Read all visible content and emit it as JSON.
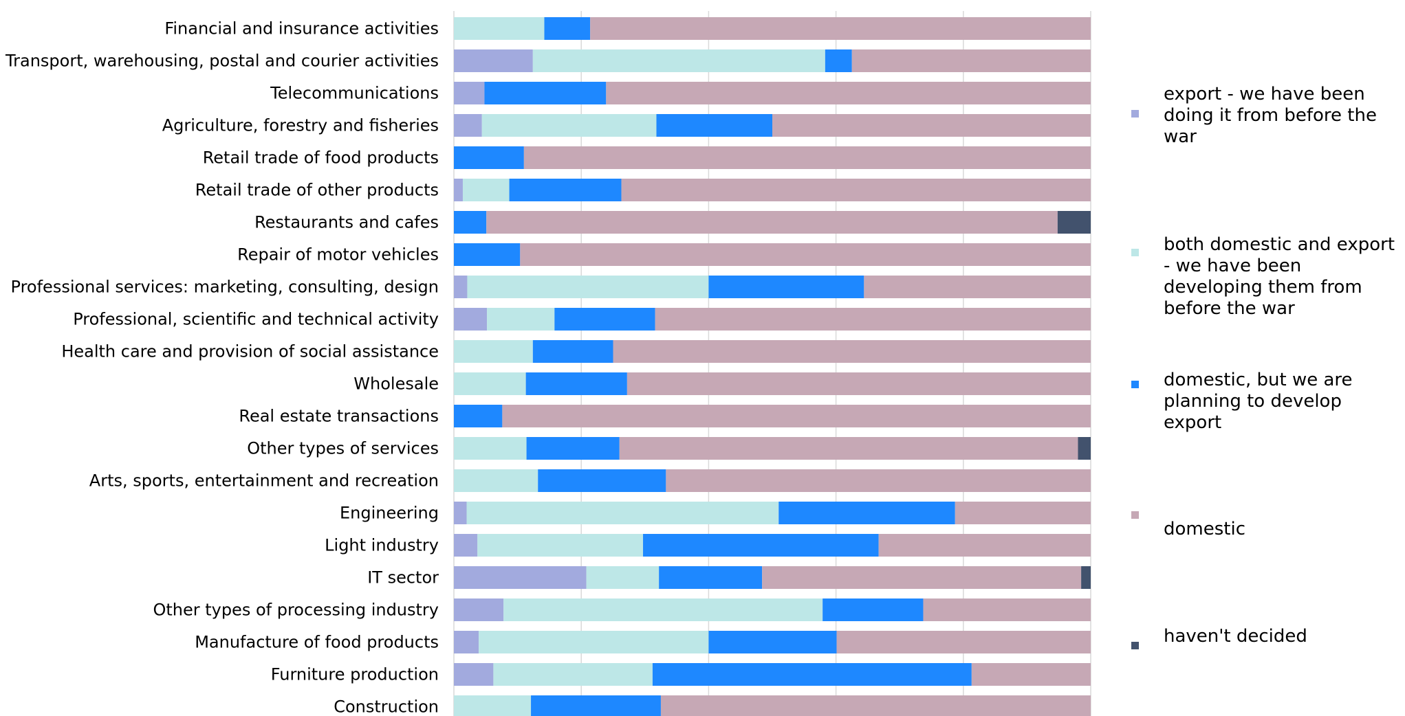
{
  "chart_data": {
    "type": "bar",
    "orientation": "horizontal",
    "stacked": true,
    "normalized": true,
    "xlim": [
      0,
      100
    ],
    "grid": true,
    "legend_position": "right",
    "categories": [
      "Financial and insurance activities",
      "Transport, warehousing, postal and courier activities",
      "Telecommunications",
      "Agriculture, forestry and fisheries",
      "Retail trade of food products",
      "Retail trade of other products",
      "Restaurants and cafes",
      "Repair of motor vehicles",
      "Professional services: marketing, consulting, design",
      "Professional, scientific and technical activity",
      "Health care and provision of social assistance",
      "Wholesale",
      "Real estate transactions",
      "Other types of services",
      "Arts, sports, entertainment and recreation",
      "Engineering",
      "Light industry",
      "IT sector",
      "Other types of processing industry",
      "Manufacture of food products",
      "Furniture production",
      "Construction"
    ],
    "series": [
      {
        "name": "export - we have been doing it from before the war",
        "color": "#a2aade",
        "values": [
          0,
          12.4,
          4.8,
          4.4,
          0,
          1.4,
          0,
          0,
          2.1,
          5.2,
          0,
          0,
          0,
          0,
          0,
          2.0,
          3.7,
          20.8,
          7.8,
          3.9,
          6.2,
          0
        ]
      },
      {
        "name": "both domestic and export - we have been developing them from before the war",
        "color": "#bde7e7",
        "values": [
          14.2,
          45.9,
          0,
          27.4,
          0,
          7.3,
          0,
          0,
          37.9,
          10.6,
          12.4,
          11.3,
          0,
          11.4,
          13.2,
          49.0,
          26.0,
          11.4,
          50.1,
          36.1,
          25.0,
          12.1
        ]
      },
      {
        "name": "domestic, but we are planning to develop export",
        "color": "#1e88ff",
        "values": [
          7.2,
          4.2,
          19.1,
          18.2,
          11.0,
          17.6,
          5.1,
          10.4,
          24.4,
          15.8,
          12.6,
          15.9,
          7.6,
          14.6,
          20.1,
          27.7,
          37.0,
          16.2,
          15.8,
          20.1,
          50.1,
          20.4
        ]
      },
      {
        "name": "domestic",
        "color": "#c6a8b5",
        "values": [
          78.6,
          37.5,
          76.1,
          50.0,
          89.0,
          73.7,
          89.7,
          89.6,
          35.6,
          68.4,
          75.0,
          72.8,
          92.4,
          72.0,
          66.7,
          21.3,
          33.3,
          50.1,
          26.3,
          39.9,
          18.7,
          67.5
        ]
      },
      {
        "name": "haven't decided",
        "color": "#42526d",
        "values": [
          0,
          0,
          0,
          0,
          0,
          0,
          5.2,
          0,
          0,
          0,
          0,
          0,
          0,
          2.0,
          0,
          0,
          0,
          1.5,
          0,
          0,
          0,
          0
        ]
      }
    ]
  }
}
